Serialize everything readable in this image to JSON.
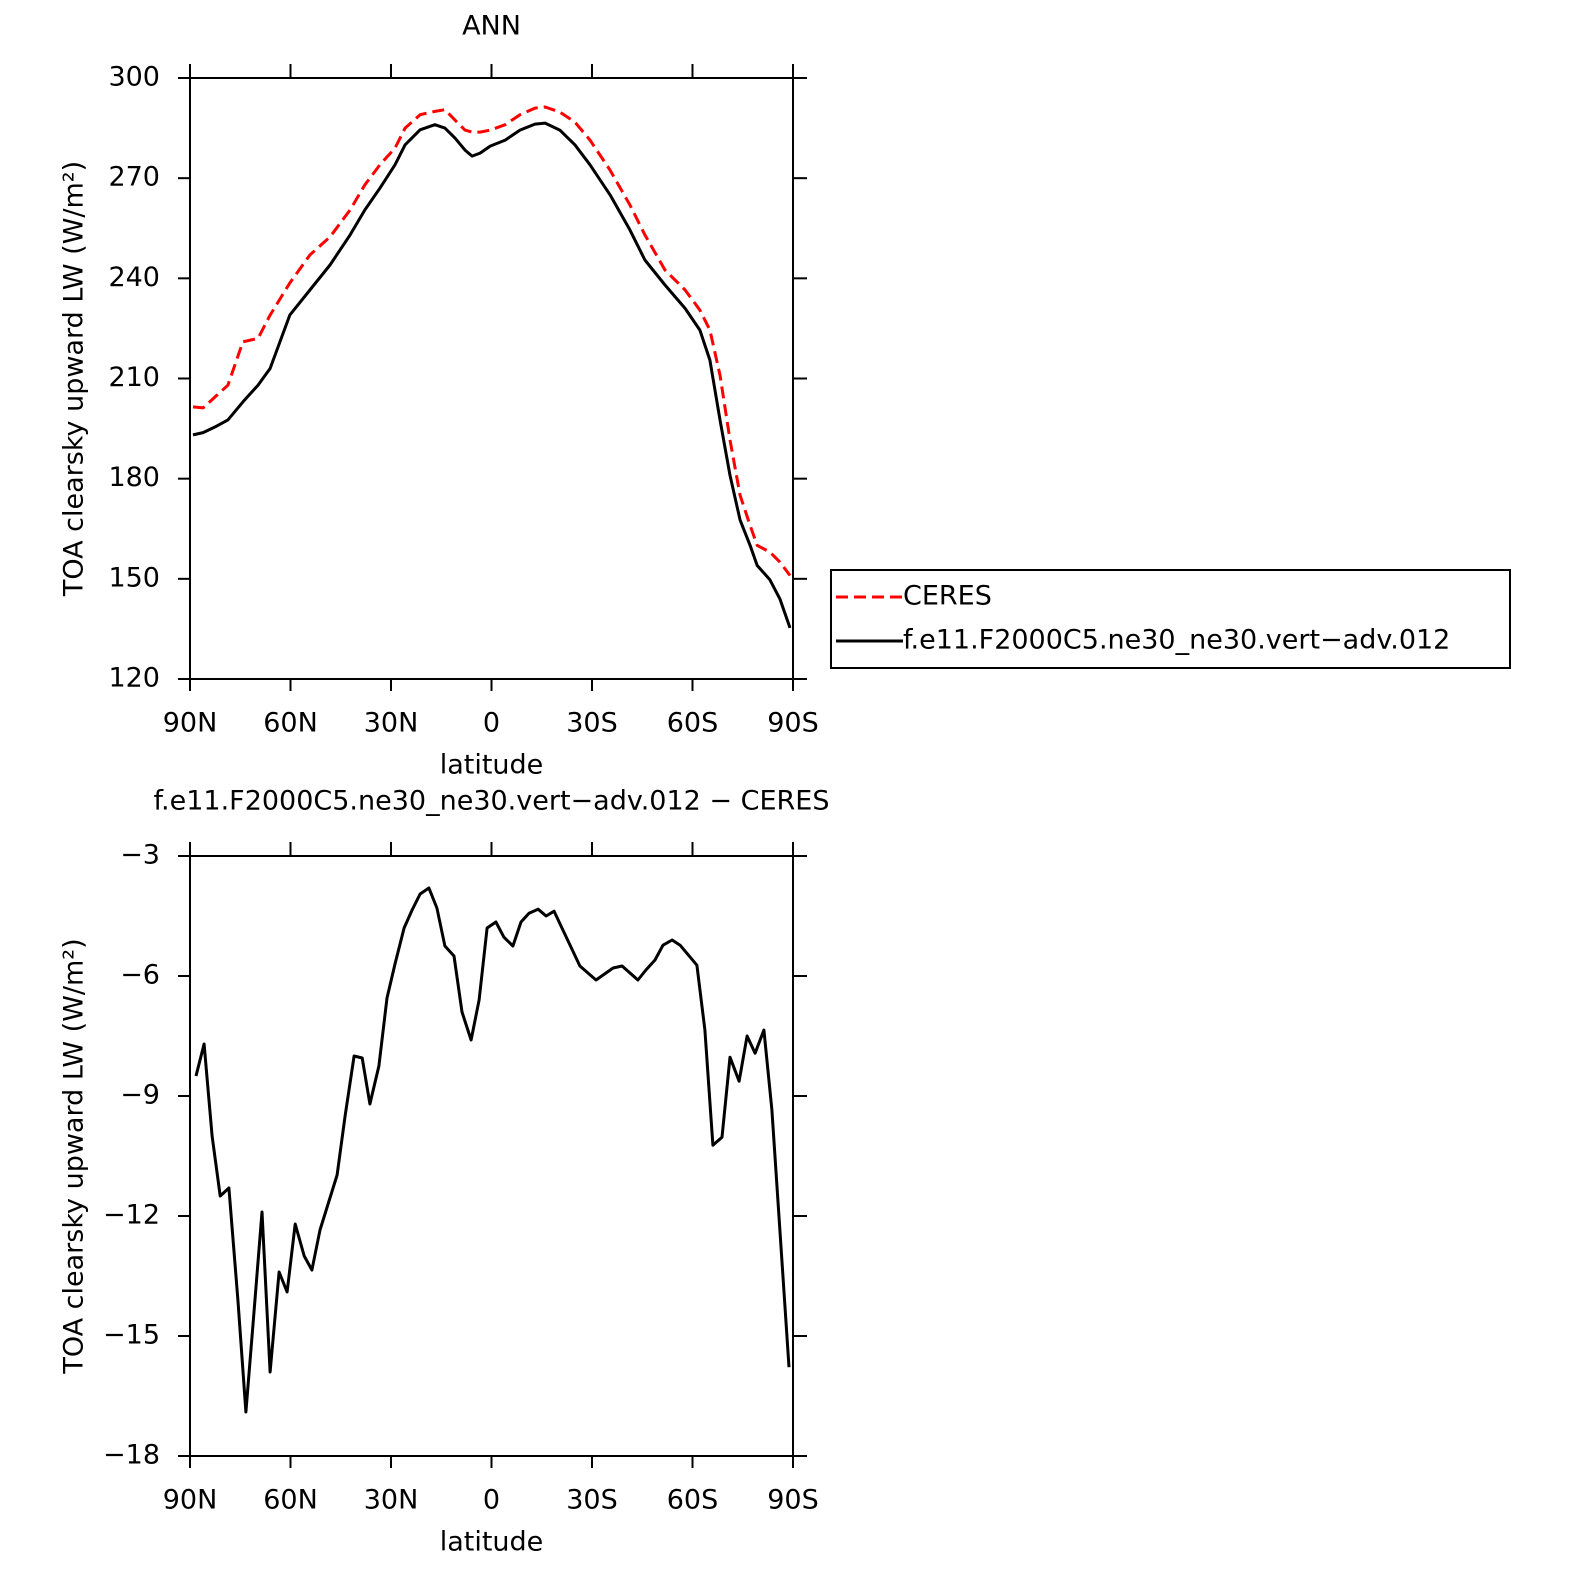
{
  "chart_data": [
    {
      "type": "line",
      "title": "ANN",
      "xlabel": "latitude",
      "ylabel": "TOA clearsky upward LW (W/m²)",
      "x": [
        89.1,
        86.1,
        82.5,
        78.7,
        74.2,
        69.7,
        66.1,
        60.2,
        54.2,
        48.2,
        42.2,
        37.8,
        33.3,
        28.8,
        25.8,
        21.3,
        16.9,
        13.9,
        10.9,
        7.9,
        5.8,
        3.4,
        0.4,
        -4.1,
        -8.5,
        -13,
        -16,
        -20.4,
        -24.9,
        -29.4,
        -35.4,
        -41.3,
        -45.8,
        -51.8,
        -57.8,
        -62.2,
        -65.2,
        -68.2,
        -71.2,
        -74.2,
        -77.2,
        -79.3,
        -83.1,
        -86.1,
        -89.1
      ],
      "series": [
        {
          "name": "CERES",
          "color": "#ff0000",
          "linestyle": "dashed",
          "values": [
            201.5,
            201.2,
            204.5,
            208,
            221,
            222,
            229,
            238.6,
            247,
            252.4,
            260.5,
            268,
            274,
            279,
            285,
            289,
            290,
            290.5,
            287.4,
            284.4,
            283.8,
            283.8,
            284.4,
            286,
            289,
            291,
            291.3,
            289.8,
            286.8,
            281.4,
            272.4,
            262,
            253,
            242.5,
            236.5,
            230.5,
            224.5,
            211,
            191.6,
            175,
            166,
            160,
            158,
            155,
            151
          ]
        },
        {
          "name": "f.e11.F2000C5.ne30_ne30.vert−adv.012",
          "color": "#000000",
          "linestyle": "solid",
          "values": [
            193.1,
            193.8,
            195.5,
            197.6,
            203,
            208,
            213,
            229,
            236.5,
            244,
            253,
            260.5,
            267,
            274,
            280,
            284.5,
            286,
            285,
            282,
            278.4,
            276.6,
            277.5,
            279.6,
            281.4,
            284.4,
            286.2,
            286.5,
            284.4,
            280,
            274,
            265,
            254.5,
            245.5,
            238,
            231,
            224.5,
            215.5,
            197.6,
            181,
            167.6,
            160,
            154,
            149.7,
            144,
            135.3
          ]
        }
      ],
      "xlim": [
        90,
        -90
      ],
      "xticks": [
        {
          "value": 90,
          "label": "90N"
        },
        {
          "value": 60,
          "label": "60N"
        },
        {
          "value": 30,
          "label": "30N"
        },
        0,
        {
          "value": -30,
          "label": "30S"
        },
        {
          "value": -60,
          "label": "60S"
        },
        {
          "value": -90,
          "label": "90S"
        }
      ],
      "ylim": [
        120,
        300
      ],
      "yticks": [
        120,
        150,
        180,
        210,
        240,
        270,
        300
      ],
      "legend": "right"
    },
    {
      "type": "line",
      "title": "f.e11.F2000C5.ne30_ne30.vert−adv.012 − CERES",
      "xlabel": "latitude",
      "ylabel": "TOA clearsky upward LW (W/m²)",
      "x": [
        88.2,
        85.8,
        83.4,
        81.0,
        78.4,
        75.7,
        73.3,
        70.9,
        68.5,
        66.1,
        63.4,
        61.0,
        58.6,
        55.9,
        53.6,
        51.2,
        46.1,
        43.7,
        41.0,
        38.6,
        36.3,
        33.6,
        31.2,
        28.8,
        26.1,
        23.7,
        21.3,
        18.7,
        16.3,
        13.9,
        11.2,
        8.8,
        6.1,
        3.7,
        1.3,
        -1.3,
        -3.7,
        -6.4,
        -8.8,
        -11.2,
        -13.9,
        -16.3,
        -18.7,
        -21.3,
        -26.4,
        -31.2,
        -36.3,
        -39.0,
        -43.7,
        -46.1,
        -48.8,
        -51.2,
        -53.9,
        -56.3,
        -61.3,
        -63.7,
        -66.1,
        -68.8,
        -71.2,
        -73.9,
        -76.3,
        -78.7,
        -81.3,
        -83.7,
        -88.8
      ],
      "values": [
        -8.5,
        -7.7,
        -10,
        -11.5,
        -11.3,
        -14.1,
        -16.9,
        -14.4,
        -11.9,
        -15.9,
        -13.4,
        -13.9,
        -12.2,
        -13,
        -13.35,
        -12.35,
        -10.975,
        -9.5,
        -8,
        -8.05,
        -9.2,
        -8.25,
        -6.55,
        -5.7,
        -4.8,
        -4.35,
        -3.95,
        -3.8,
        -4.3,
        -5.25,
        -5.5,
        -6.9,
        -7.6,
        -6.6,
        -4.8,
        -4.65,
        -5.03,
        -5.25,
        -4.65,
        -4.43,
        -4.33,
        -4.5,
        -4.38,
        -4.85,
        -5.75,
        -6.1,
        -5.8,
        -5.75,
        -6.1,
        -5.85,
        -5.6,
        -5.23,
        -5.1,
        -5.23,
        -5.73,
        -7.35,
        -10.23,
        -10.03,
        -8.03,
        -8.63,
        -7.5,
        -7.93,
        -7.35,
        -9.35,
        -15.78
      ],
      "color": "#000000",
      "xlim": [
        90,
        -90
      ],
      "xticks": [
        {
          "value": 90,
          "label": "90N"
        },
        {
          "value": 60,
          "label": "60N"
        },
        {
          "value": 30,
          "label": "30N"
        },
        0,
        {
          "value": -30,
          "label": "30S"
        },
        {
          "value": -60,
          "label": "60S"
        },
        {
          "value": -90,
          "label": "90S"
        }
      ],
      "ylim": [
        -18,
        -3
      ],
      "yticks": [
        {
          "value": -18,
          "label": "−18"
        },
        {
          "value": -15,
          "label": "−15"
        },
        {
          "value": -12,
          "label": "−12"
        },
        {
          "value": -9,
          "label": "−9"
        },
        {
          "value": -6,
          "label": "−6"
        },
        {
          "value": -3,
          "label": "−3"
        }
      ]
    }
  ]
}
